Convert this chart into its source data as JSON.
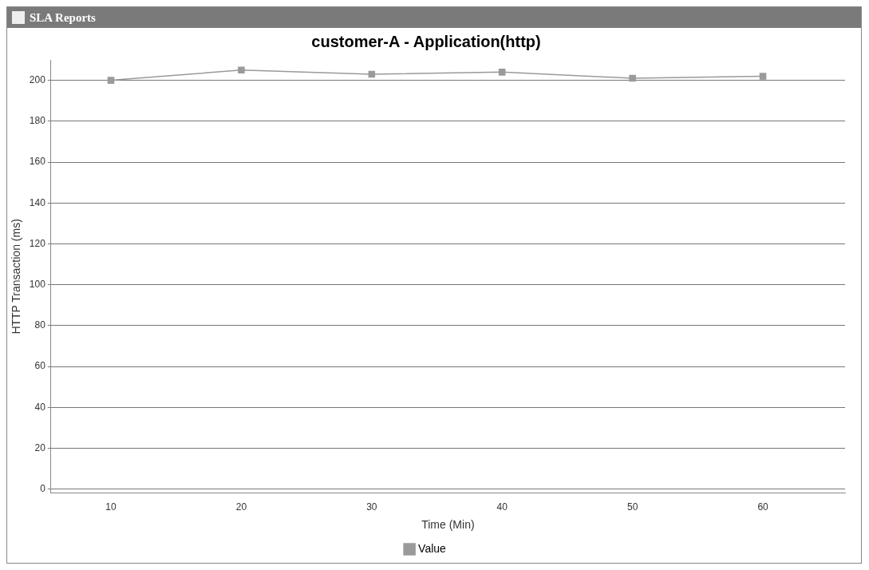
{
  "chart_data": {
    "type": "line",
    "title": "customer-A - Application(http)",
    "xlabel": "Time (Min)",
    "ylabel": "HTTP Transaction (ms)",
    "x": [
      10,
      20,
      30,
      40,
      50,
      60
    ],
    "series": [
      {
        "name": "Value",
        "color": "#9a9a9a",
        "values": [
          200,
          205,
          203,
          204,
          201,
          202
        ]
      }
    ],
    "xlim": [
      5.4,
      66.3
    ],
    "xticks": [
      10,
      20,
      30,
      40,
      50,
      60
    ],
    "ylim": [
      -2,
      210
    ],
    "yticks": [
      0,
      20,
      40,
      60,
      80,
      100,
      120,
      140,
      160,
      180,
      200
    ],
    "grid": "y",
    "legend": "bottom",
    "marker": "square",
    "line_style": "solid",
    "annotations": [
      "SLA Reports"
    ]
  }
}
